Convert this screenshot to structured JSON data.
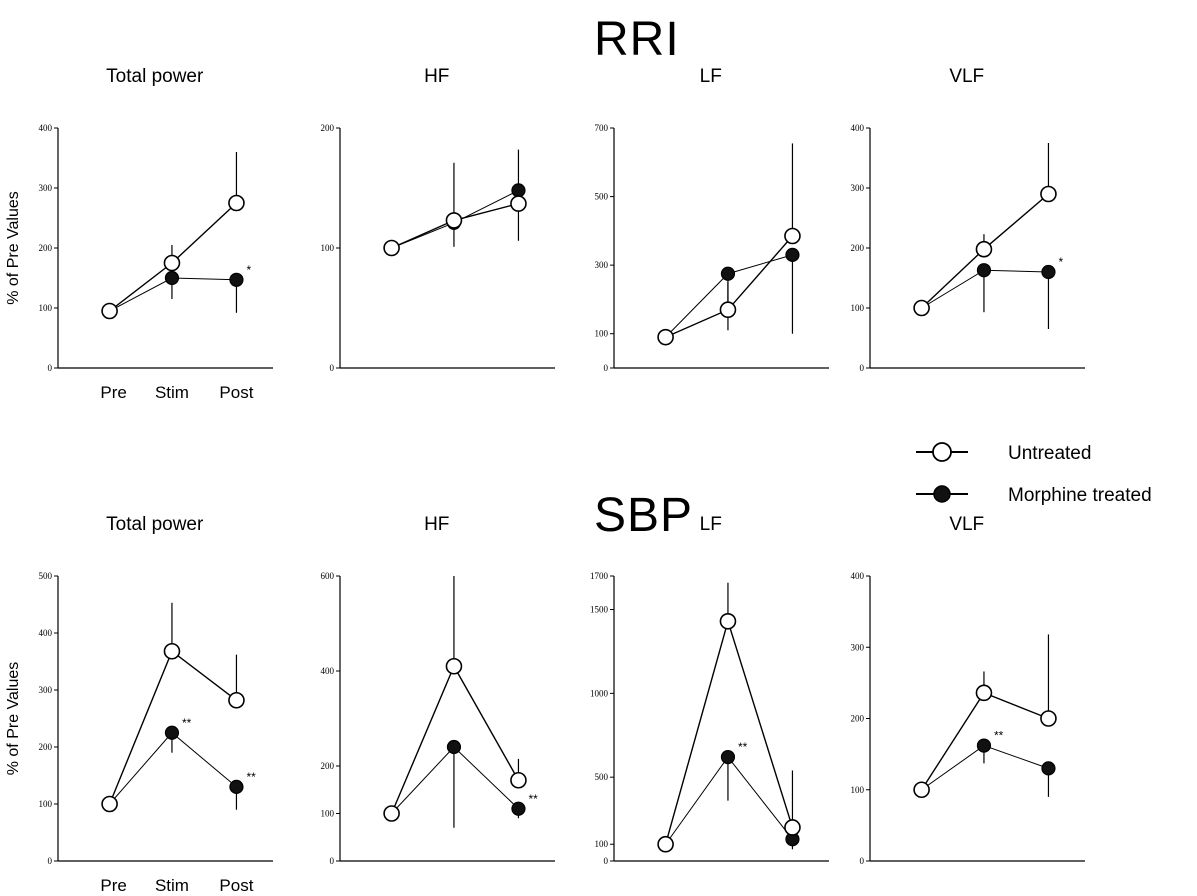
{
  "sections": [
    {
      "title": "RRI",
      "ylabel": "% of Pre Values",
      "categories": [
        "Pre",
        "Stim",
        "Post"
      ],
      "panels": [
        {
          "title": "Total power",
          "yticks": [
            0,
            100,
            200,
            300,
            400
          ],
          "ylim": [
            0,
            400
          ]
        },
        {
          "title": "HF",
          "yticks": [
            0,
            100,
            200
          ],
          "ylim": [
            0,
            200
          ]
        },
        {
          "title": "LF",
          "yticks": [
            0,
            100,
            300,
            500,
            700
          ],
          "ylim": [
            0,
            700
          ]
        },
        {
          "title": "VLF",
          "yticks": [
            0,
            100,
            200,
            300,
            400
          ],
          "ylim": [
            0,
            400
          ]
        }
      ]
    },
    {
      "title": "SBP",
      "ylabel": "% of Pre Values",
      "categories": [
        "Pre",
        "Stim",
        "Post"
      ],
      "panels": [
        {
          "title": "Total power",
          "yticks": [
            0,
            100,
            200,
            300,
            400,
            500
          ],
          "ylim": [
            0,
            500
          ]
        },
        {
          "title": "HF",
          "yticks": [
            0,
            100,
            200,
            400,
            600
          ],
          "ylim": [
            0,
            600
          ]
        },
        {
          "title": "LF",
          "yticks": [
            0,
            100,
            500,
            1000,
            1500,
            1700
          ],
          "ylim": [
            0,
            1700
          ]
        },
        {
          "title": "VLF",
          "yticks": [
            0,
            100,
            200,
            300,
            400
          ],
          "ylim": [
            0,
            400
          ]
        }
      ]
    }
  ],
  "legend": {
    "items": [
      {
        "label": "Untreated",
        "marker": "open-circle"
      },
      {
        "label": "Morphine treated",
        "marker": "filled-circle"
      }
    ]
  },
  "chart_data": [
    {
      "type": "line",
      "section": "RRI",
      "title": "Total power",
      "ylabel": "% of Pre Values",
      "categories": [
        "Pre",
        "Stim",
        "Post"
      ],
      "ylim": [
        0,
        400
      ],
      "series": [
        {
          "name": "Untreated",
          "values": [
            95,
            175,
            275
          ],
          "err": [
            0,
            30,
            85
          ],
          "marker": "open",
          "annotations": [
            "",
            "",
            ""
          ]
        },
        {
          "name": "Morphine treated",
          "values": [
            95,
            150,
            147
          ],
          "err": [
            0,
            35,
            55
          ],
          "marker": "filled",
          "annotations": [
            "",
            "",
            "*"
          ]
        }
      ]
    },
    {
      "type": "line",
      "section": "RRI",
      "title": "HF",
      "categories": [
        "Pre",
        "Stim",
        "Post"
      ],
      "ylim": [
        0,
        200
      ],
      "series": [
        {
          "name": "Untreated",
          "values": [
            100,
            123,
            137
          ],
          "err": [
            0,
            48,
            45
          ],
          "marker": "open",
          "annotations": [
            "",
            "",
            ""
          ]
        },
        {
          "name": "Morphine treated",
          "values": [
            100,
            121,
            148
          ],
          "err": [
            0,
            20,
            42
          ],
          "marker": "filled",
          "annotations": [
            "",
            "",
            ""
          ]
        }
      ]
    },
    {
      "type": "line",
      "section": "RRI",
      "title": "LF",
      "categories": [
        "Pre",
        "Stim",
        "Post"
      ],
      "ylim": [
        0,
        700
      ],
      "series": [
        {
          "name": "Untreated",
          "values": [
            90,
            170,
            385
          ],
          "err": [
            0,
            80,
            270
          ],
          "marker": "open",
          "annotations": [
            "",
            "",
            ""
          ]
        },
        {
          "name": "Morphine treated",
          "values": [
            90,
            275,
            330
          ],
          "err": [
            0,
            165,
            230
          ],
          "marker": "filled",
          "annotations": [
            "",
            "",
            ""
          ]
        }
      ]
    },
    {
      "type": "line",
      "section": "RRI",
      "title": "VLF",
      "categories": [
        "Pre",
        "Stim",
        "Post"
      ],
      "ylim": [
        0,
        400
      ],
      "series": [
        {
          "name": "Untreated",
          "values": [
            100,
            198,
            290
          ],
          "err": [
            0,
            25,
            85
          ],
          "marker": "open",
          "annotations": [
            "",
            "",
            ""
          ]
        },
        {
          "name": "Morphine treated",
          "values": [
            100,
            163,
            160
          ],
          "err": [
            0,
            70,
            95
          ],
          "marker": "filled",
          "annotations": [
            "",
            "",
            "*"
          ]
        }
      ]
    },
    {
      "type": "line",
      "section": "SBP",
      "title": "Total power",
      "ylabel": "% of Pre Values",
      "categories": [
        "Pre",
        "Stim",
        "Post"
      ],
      "ylim": [
        0,
        500
      ],
      "series": [
        {
          "name": "Untreated",
          "values": [
            100,
            368,
            282
          ],
          "err": [
            0,
            85,
            80
          ],
          "marker": "open",
          "annotations": [
            "",
            "",
            ""
          ]
        },
        {
          "name": "Morphine treated",
          "values": [
            100,
            225,
            130
          ],
          "err": [
            0,
            35,
            40
          ],
          "marker": "filled",
          "annotations": [
            "",
            "**",
            "**"
          ]
        }
      ]
    },
    {
      "type": "line",
      "section": "SBP",
      "title": "HF",
      "categories": [
        "Pre",
        "Stim",
        "Post"
      ],
      "ylim": [
        0,
        600
      ],
      "series": [
        {
          "name": "Untreated",
          "values": [
            100,
            410,
            170
          ],
          "err": [
            0,
            190,
            45
          ],
          "marker": "open",
          "annotations": [
            "",
            "",
            ""
          ]
        },
        {
          "name": "Morphine treated",
          "values": [
            100,
            240,
            110
          ],
          "err": [
            0,
            170,
            20
          ],
          "marker": "filled",
          "annotations": [
            "",
            "",
            "**"
          ]
        }
      ]
    },
    {
      "type": "line",
      "section": "SBP",
      "title": "LF",
      "categories": [
        "Pre",
        "Stim",
        "Post"
      ],
      "ylim": [
        0,
        1700
      ],
      "series": [
        {
          "name": "Untreated",
          "values": [
            100,
            1430,
            200
          ],
          "err": [
            0,
            230,
            340
          ],
          "marker": "open",
          "annotations": [
            "",
            "",
            ""
          ]
        },
        {
          "name": "Morphine treated",
          "values": [
            100,
            620,
            130
          ],
          "err": [
            0,
            260,
            60
          ],
          "marker": "filled",
          "annotations": [
            "",
            "**",
            ""
          ]
        }
      ]
    },
    {
      "type": "line",
      "section": "SBP",
      "title": "VLF",
      "categories": [
        "Pre",
        "Stim",
        "Post"
      ],
      "ylim": [
        0,
        400
      ],
      "series": [
        {
          "name": "Untreated",
          "values": [
            100,
            236,
            200
          ],
          "err": [
            0,
            30,
            118
          ],
          "marker": "open",
          "annotations": [
            "",
            "",
            ""
          ]
        },
        {
          "name": "Morphine treated",
          "values": [
            100,
            162,
            130
          ],
          "err": [
            0,
            25,
            40
          ],
          "marker": "filled",
          "annotations": [
            "",
            "**",
            ""
          ]
        }
      ]
    }
  ]
}
